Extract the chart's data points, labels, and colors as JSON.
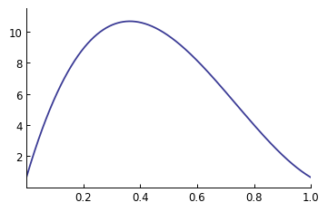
{
  "xlabel": "",
  "ylabel": "",
  "xlim": [
    0,
    1.0
  ],
  "ylim": [
    0,
    11.5
  ],
  "xticks": [
    0.2,
    0.4,
    0.6,
    0.8,
    1.0
  ],
  "yticks": [
    2,
    4,
    6,
    8,
    10
  ],
  "line_color": "#3c3c96",
  "line_width": 1.3,
  "background_color": "#ffffff",
  "k": 10,
  "n_points": 1000
}
